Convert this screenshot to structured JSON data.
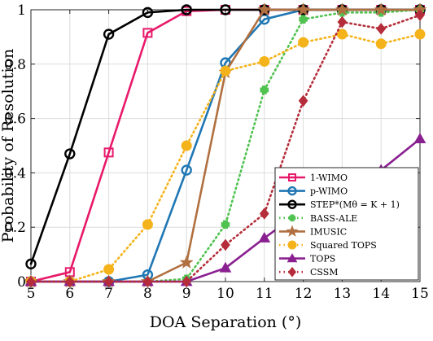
{
  "chart_data": {
    "type": "line",
    "xlabel": "DOA Separation (°)",
    "ylabel": "Probability of Resolution",
    "xlim": [
      5,
      15
    ],
    "ylim": [
      0,
      1
    ],
    "xticks": [
      5,
      6,
      7,
      8,
      9,
      10,
      11,
      12,
      13,
      14,
      15
    ],
    "yticks": [
      0,
      0.2,
      0.4,
      0.6,
      0.8,
      1
    ],
    "ytick_labels": [
      "0",
      "0.2",
      "0.4",
      "0.6",
      "0.8",
      "1"
    ],
    "grid": true,
    "legend_position": "bottom-right",
    "series": [
      {
        "name": "1-WIMO",
        "color": "#e8196a",
        "marker": "square",
        "dash": "solid",
        "x": [
          5,
          6,
          7,
          8,
          9,
          10,
          11,
          12,
          13,
          14,
          15
        ],
        "y": [
          0,
          0.035,
          0.475,
          0.915,
          0.995,
          1,
          1,
          1,
          1,
          1,
          1
        ]
      },
      {
        "name": "p-WIMO",
        "color": "#1f77b4",
        "marker": "circle",
        "dash": "solid",
        "x": [
          5,
          6,
          7,
          8,
          9,
          10,
          11,
          12,
          13,
          14,
          15
        ],
        "y": [
          0,
          0,
          0,
          0.025,
          0.41,
          0.805,
          0.965,
          1,
          1,
          1,
          1
        ]
      },
      {
        "name": "STEP*(Mθ = K + 1)",
        "color": "#000000",
        "marker": "circle",
        "dash": "solid",
        "x": [
          5,
          6,
          7,
          8,
          9,
          10,
          11,
          12,
          13,
          14,
          15
        ],
        "y": [
          0.065,
          0.47,
          0.91,
          0.99,
          1,
          1,
          1,
          1,
          1,
          1,
          1
        ]
      },
      {
        "name": "BASS-ALE",
        "color": "#4fc24f",
        "marker": "plus",
        "dash": "dotted",
        "x": [
          5,
          6,
          7,
          8,
          9,
          10,
          11,
          12,
          13,
          14,
          15
        ],
        "y": [
          0,
          0,
          0,
          0,
          0.01,
          0.21,
          0.705,
          0.965,
          0.99,
          0.99,
          1
        ]
      },
      {
        "name": "IMUSIC",
        "color": "#b07040",
        "marker": "star",
        "dash": "solid",
        "x": [
          5,
          6,
          7,
          8,
          9,
          10,
          11,
          12,
          13,
          14,
          15
        ],
        "y": [
          0,
          0,
          0,
          0,
          0.07,
          0.77,
          1,
          1,
          1,
          1,
          1
        ]
      },
      {
        "name": "Squared TOPS",
        "color": "#f5b31b",
        "marker": "circle-filled",
        "dash": "dotted",
        "x": [
          5,
          6,
          7,
          8,
          9,
          10,
          11,
          12,
          13,
          14,
          15
        ],
        "y": [
          0,
          0,
          0.045,
          0.21,
          0.5,
          0.775,
          0.81,
          0.88,
          0.91,
          0.875,
          0.91
        ]
      },
      {
        "name": "TOPS",
        "color": "#8a2090",
        "marker": "triangle",
        "dash": "solid",
        "x": [
          5,
          6,
          7,
          8,
          9,
          10,
          11,
          12,
          13,
          14,
          15
        ],
        "y": [
          0,
          0,
          0,
          0,
          0,
          0.05,
          0.16,
          0.265,
          0.35,
          0.41,
          0.525
        ]
      },
      {
        "name": "CSSM",
        "color": "#b52d3a",
        "marker": "diamond",
        "dash": "dotted",
        "x": [
          5,
          6,
          7,
          8,
          9,
          10,
          11,
          12,
          13,
          14,
          15
        ],
        "y": [
          0,
          0,
          0,
          0,
          0,
          0.135,
          0.25,
          0.665,
          0.955,
          0.93,
          0.98
        ]
      }
    ]
  }
}
